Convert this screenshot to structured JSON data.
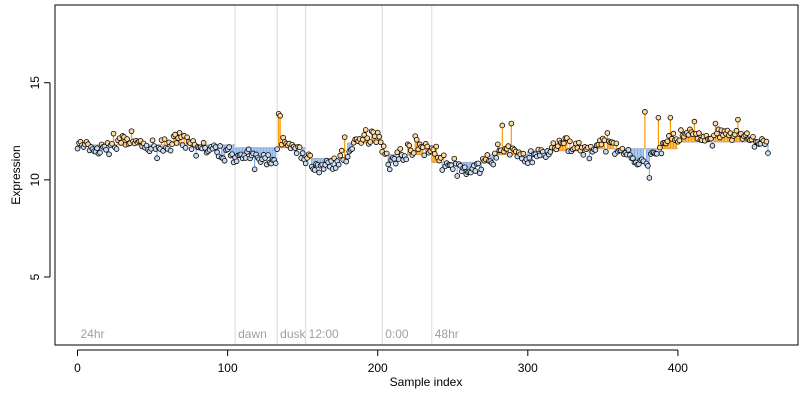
{
  "chart_data": {
    "type": "scatter",
    "title": "",
    "xlabel": "Sample index",
    "ylabel": "Expression",
    "xlim": [
      -15,
      480
    ],
    "ylim": [
      1.5,
      19
    ],
    "xticks": [
      0,
      100,
      200,
      300,
      400
    ],
    "yticks": [
      5,
      10,
      15
    ],
    "grid": false,
    "annotations": [
      {
        "x": 0,
        "text": "24hr",
        "line": false
      },
      {
        "x": 105,
        "text": "dawn",
        "line": true
      },
      {
        "x": 133,
        "text": "dusk",
        "line": true
      },
      {
        "x": 152,
        "text": "12:00",
        "line": true
      },
      {
        "x": 203,
        "text": "0:00",
        "line": true
      },
      {
        "x": 236,
        "text": "48hr",
        "line": true
      }
    ],
    "segments": [
      {
        "start": 0,
        "end": 105,
        "mean": 11.8
      },
      {
        "start": 105,
        "end": 152,
        "mean": 11.65
      },
      {
        "start": 152,
        "end": 180,
        "mean": 11.1
      },
      {
        "start": 180,
        "end": 203,
        "mean": 11.9
      },
      {
        "start": 203,
        "end": 236,
        "mean": 11.3
      },
      {
        "start": 236,
        "end": 275,
        "mean": 10.9
      },
      {
        "start": 275,
        "end": 300,
        "mean": 11.3
      },
      {
        "start": 300,
        "end": 340,
        "mean": 11.5
      },
      {
        "start": 340,
        "end": 365,
        "mean": 11.6
      },
      {
        "start": 365,
        "end": 400,
        "mean": 11.6
      },
      {
        "start": 400,
        "end": 460,
        "mean": 11.95
      }
    ],
    "anchors": [
      [
        0,
        11.8
      ],
      [
        15,
        11.5
      ],
      [
        30,
        12.1
      ],
      [
        50,
        11.6
      ],
      [
        65,
        12.0
      ],
      [
        80,
        11.7
      ],
      [
        95,
        11.4
      ],
      [
        105,
        11.3
      ],
      [
        120,
        11.0
      ],
      [
        132,
        11.2
      ],
      [
        137,
        11.9
      ],
      [
        150,
        11.3
      ],
      [
        160,
        10.6
      ],
      [
        172,
        10.9
      ],
      [
        180,
        11.4
      ],
      [
        190,
        12.1
      ],
      [
        200,
        12.4
      ],
      [
        208,
        10.9
      ],
      [
        215,
        11.2
      ],
      [
        225,
        11.8
      ],
      [
        236,
        11.6
      ],
      [
        245,
        10.8
      ],
      [
        260,
        10.5
      ],
      [
        270,
        10.7
      ],
      [
        280,
        11.4
      ],
      [
        290,
        11.6
      ],
      [
        300,
        11.0
      ],
      [
        312,
        11.4
      ],
      [
        325,
        11.9
      ],
      [
        340,
        11.5
      ],
      [
        352,
        11.9
      ],
      [
        365,
        11.6
      ],
      [
        375,
        10.7
      ],
      [
        385,
        11.5
      ],
      [
        395,
        12.0
      ],
      [
        405,
        12.4
      ],
      [
        420,
        12.0
      ],
      [
        435,
        12.4
      ],
      [
        450,
        12.0
      ],
      [
        460,
        11.8
      ]
    ],
    "outliers": [
      {
        "x": 134,
        "y": 13.4
      },
      {
        "x": 135,
        "y": 13.3
      },
      {
        "x": 178,
        "y": 12.2
      },
      {
        "x": 196,
        "y": 12.5
      },
      {
        "x": 253,
        "y": 10.2
      },
      {
        "x": 283,
        "y": 12.8
      },
      {
        "x": 289,
        "y": 12.9
      },
      {
        "x": 378,
        "y": 13.5
      },
      {
        "x": 381,
        "y": 10.1
      },
      {
        "x": 387,
        "y": 13.2
      },
      {
        "x": 395,
        "y": 13.2
      },
      {
        "x": 411,
        "y": 13.0
      },
      {
        "x": 440,
        "y": 13.1
      },
      {
        "x": 425,
        "y": 12.9
      }
    ],
    "n_points": 461,
    "colors": {
      "above": "#ff9900",
      "below": "#87aee8",
      "point_stroke": "#000000",
      "annotation_line": "#d8d8d8",
      "annotation_text": "#a0a0a0",
      "axis": "#000000"
    }
  }
}
